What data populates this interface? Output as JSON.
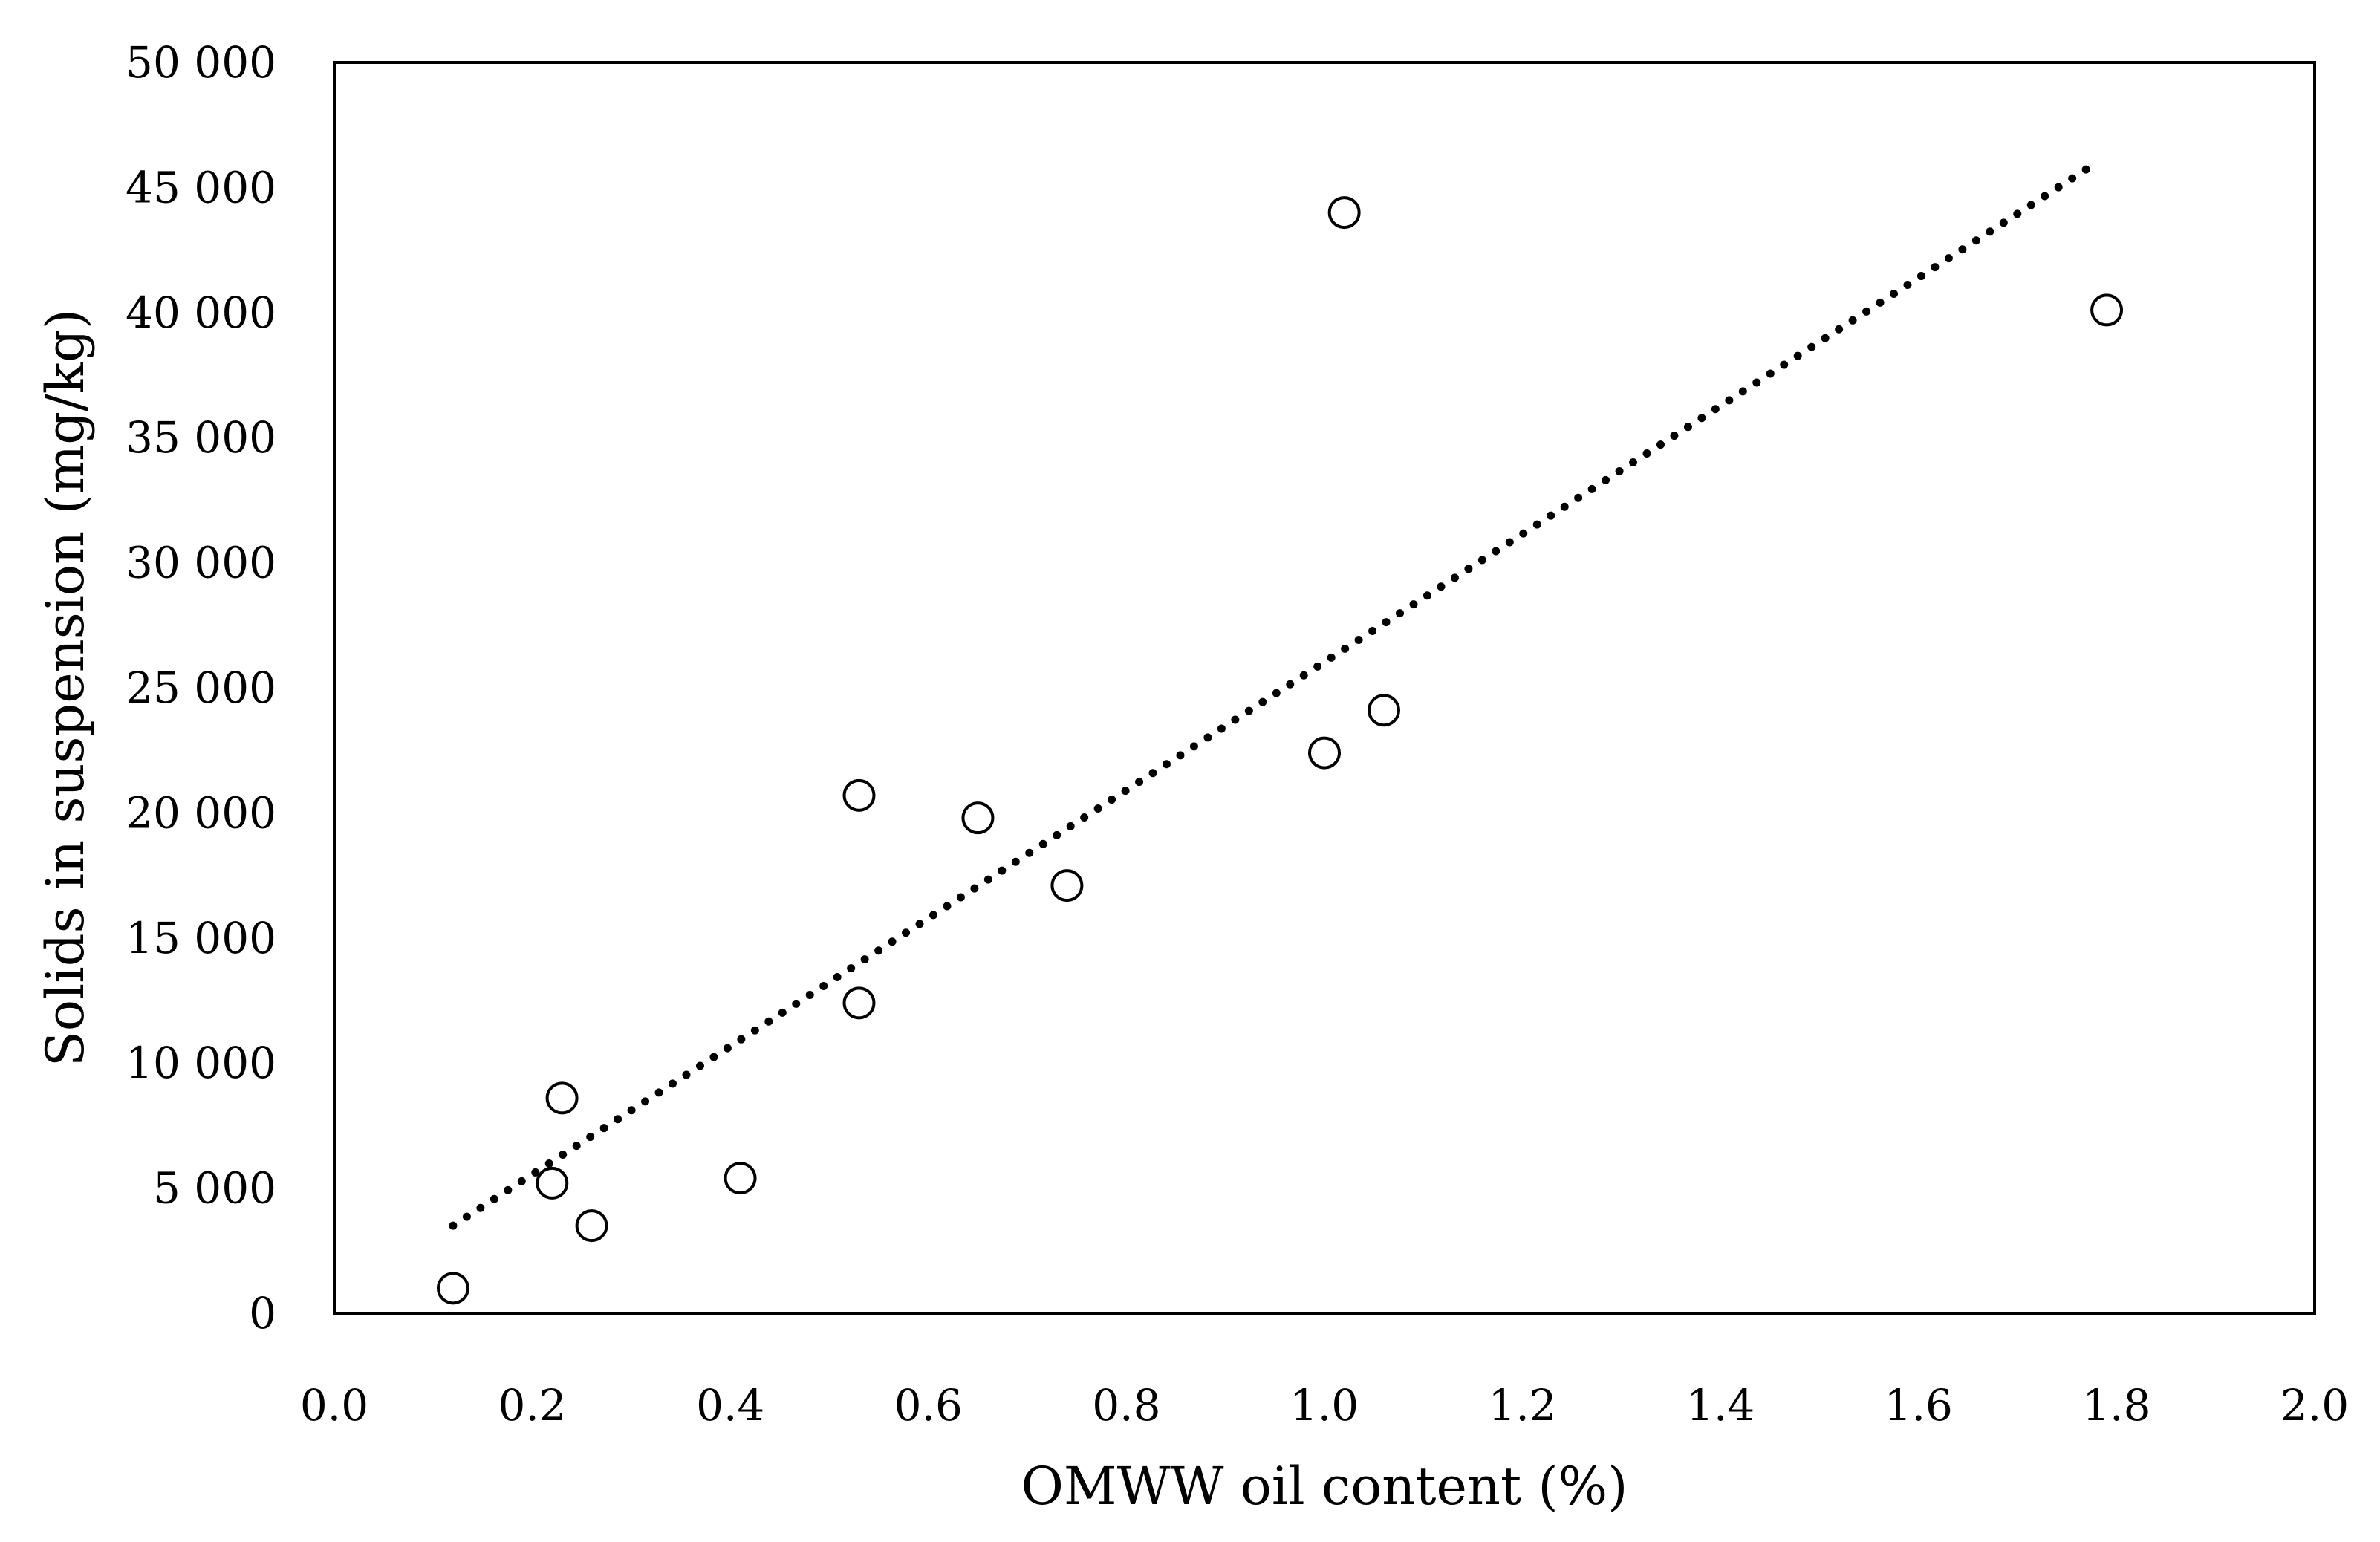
{
  "chart_data": {
    "type": "scatter",
    "title": "",
    "xlabel": "OMWW oil content (%)",
    "ylabel": "Solids in suspension  (mg/kg)",
    "xlim": [
      0.0,
      2.0
    ],
    "ylim": [
      0,
      50000
    ],
    "x_ticks": [
      0.0,
      0.2,
      0.4,
      0.6,
      0.8,
      1.0,
      1.2,
      1.4,
      1.6,
      1.8,
      2.0
    ],
    "x_tick_labels": [
      "0.0",
      "0.2",
      "0.4",
      "0.6",
      "0.8",
      "1.0",
      "1.2",
      "1.4",
      "1.6",
      "1.8",
      "2.0"
    ],
    "y_ticks": [
      0,
      5000,
      10000,
      15000,
      20000,
      25000,
      30000,
      35000,
      40000,
      45000,
      50000
    ],
    "y_tick_labels": [
      "0",
      "5 000",
      "10 000",
      "15 000",
      "20 000",
      "25 000",
      "30 000",
      "35 000",
      "40 000",
      "45 000",
      "50 000"
    ],
    "grid": false,
    "legend": "none",
    "marker": "open-circle",
    "colors": {
      "marker_stroke": "#000000",
      "marker_fill": "#ffffff",
      "trendline": "#000000",
      "axes": "#000000"
    },
    "points": [
      {
        "x": 0.12,
        "y": 1000
      },
      {
        "x": 0.22,
        "y": 5200
      },
      {
        "x": 0.23,
        "y": 8600
      },
      {
        "x": 0.26,
        "y": 3500
      },
      {
        "x": 0.41,
        "y": 5400
      },
      {
        "x": 0.53,
        "y": 12400
      },
      {
        "x": 0.53,
        "y": 20700
      },
      {
        "x": 0.65,
        "y": 19800
      },
      {
        "x": 0.74,
        "y": 17100
      },
      {
        "x": 1.0,
        "y": 22400
      },
      {
        "x": 1.02,
        "y": 44000
      },
      {
        "x": 1.06,
        "y": 24100
      },
      {
        "x": 1.79,
        "y": 40100
      }
    ],
    "trendline": {
      "style": "dotted",
      "type": "linear",
      "x_start": 0.12,
      "y_start": 3500,
      "x_end": 1.78,
      "y_end": 46000
    }
  }
}
